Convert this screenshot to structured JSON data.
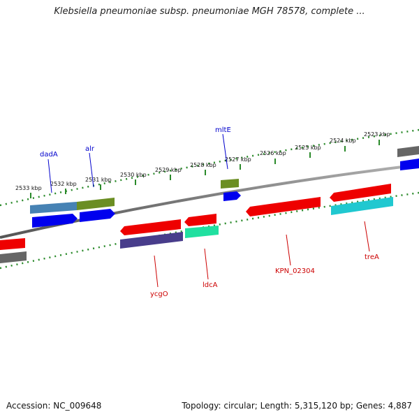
{
  "title": "Klebsiella pneumoniae subsp. pneumoniae MGH 78578, complete ...",
  "footer": {
    "accession": "Accession: NC_009648",
    "summary": "Topology: circular; Length: 5,315,120 bp; Genes: 4,887"
  },
  "colors": {
    "backbone": "#808080",
    "tick": "#2a8a2a",
    "forward_label": "#0000cc",
    "reverse_label": "#cc0000"
  },
  "ruler_labels": [
    "2533 kbp",
    "2532 kbp",
    "2531 kbp",
    "2530 kbp",
    "2529 kbp",
    "2528 kbp",
    "2527 kbp",
    "2526 kbp",
    "2525 kbp",
    "2524 kbp",
    "2523 kbp"
  ],
  "gene_labels": [
    {
      "text": "dadA",
      "strand": "forward"
    },
    {
      "text": "alr",
      "strand": "forward"
    },
    {
      "text": "mltE",
      "strand": "forward"
    },
    {
      "text": "ycgO",
      "strand": "reverse"
    },
    {
      "text": "ldcA",
      "strand": "reverse"
    },
    {
      "text": "KPN_02304",
      "strand": "reverse"
    },
    {
      "text": "treA",
      "strand": "reverse"
    }
  ]
}
